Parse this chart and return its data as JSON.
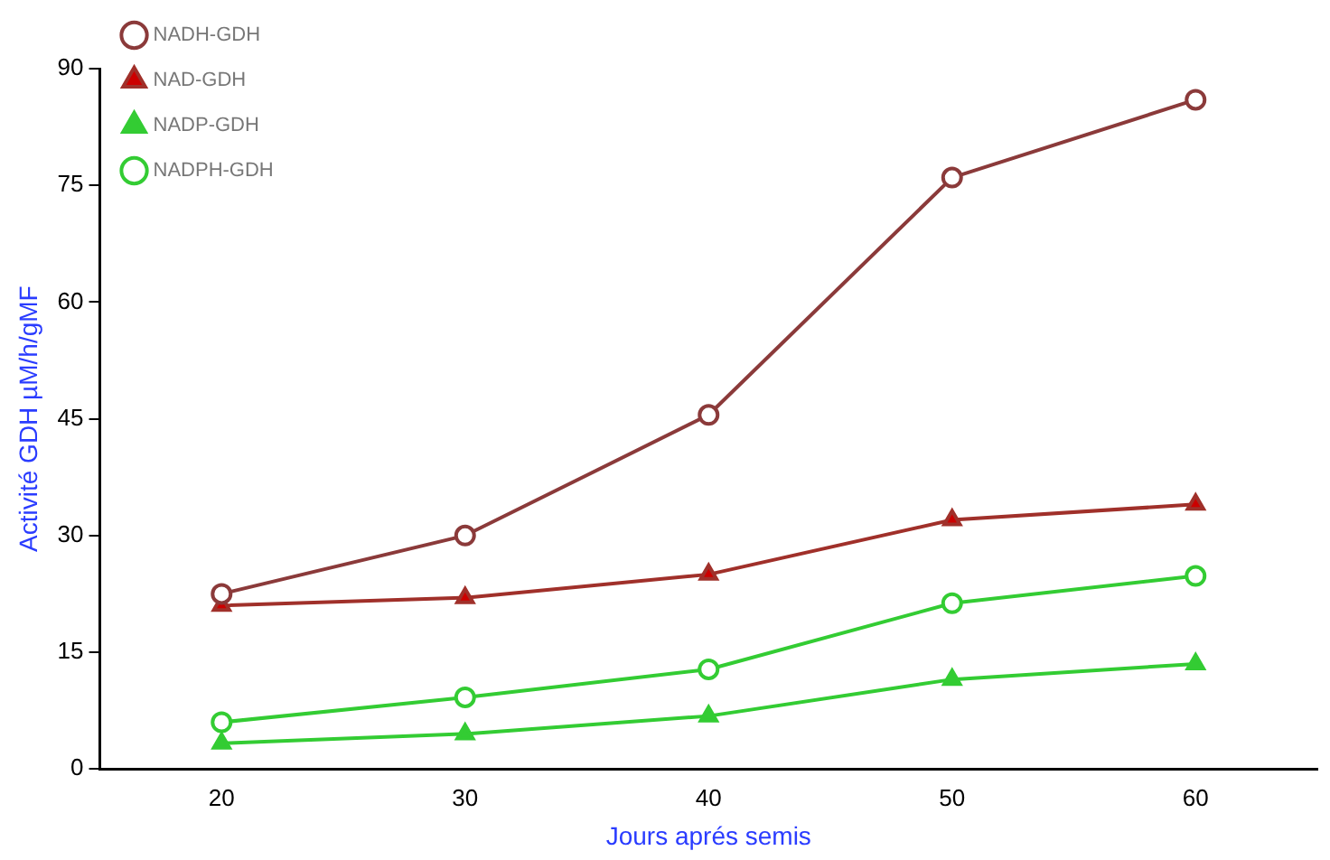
{
  "chart_data": {
    "type": "line",
    "xlabel": "Jours aprés semis",
    "ylabel": "Activité GDH µM/h/gMF",
    "categories": [
      "20",
      "30",
      "40",
      "50",
      "60"
    ],
    "series": [
      {
        "name": "NADH-GDH",
        "color": "#8b3a3a",
        "marker": "circle",
        "values": [
          22.5,
          30,
          45.5,
          76,
          86
        ]
      },
      {
        "name": "NAD-GDH",
        "color": "#a0302a",
        "marker": "triangle",
        "values": [
          21,
          22,
          25,
          32,
          34
        ]
      },
      {
        "name": "NADP-GDH",
        "color": "#33cc33",
        "marker": "triangle",
        "values": [
          3.3,
          4.5,
          6.8,
          11.5,
          13.5
        ]
      },
      {
        "name": "NADPH-GDH",
        "color": "#33cc33",
        "marker": "circle",
        "values": [
          6,
          9.2,
          12.8,
          21.3,
          24.8
        ]
      }
    ],
    "ylim": [
      0,
      90
    ],
    "yticks": [
      0,
      15,
      30,
      45,
      60,
      75,
      90
    ],
    "grid": false,
    "legend": "top left"
  }
}
